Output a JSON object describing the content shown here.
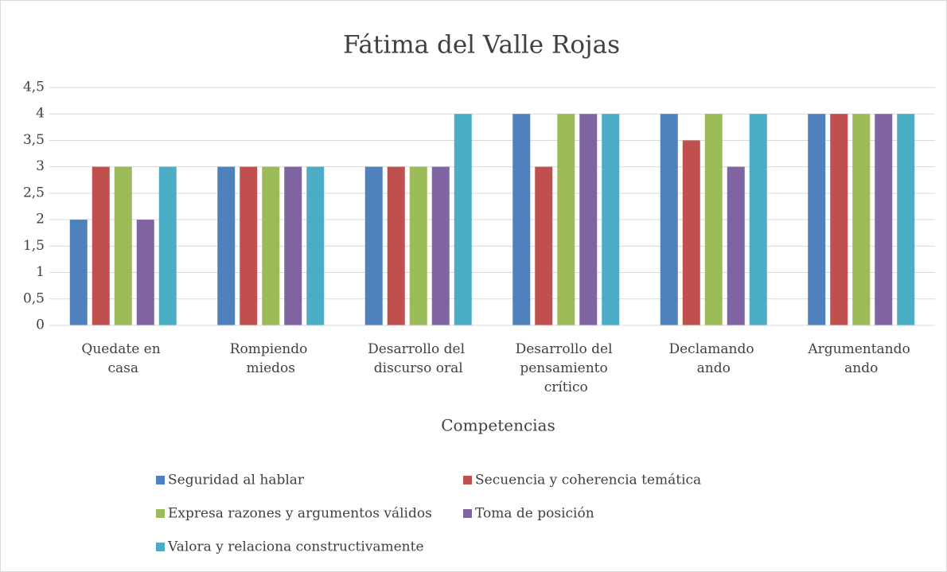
{
  "chart_data": {
    "type": "bar",
    "title": "Fátima del Valle Rojas",
    "x_label": "Competencias",
    "categories": [
      "Quedate en casa",
      "Rompiendo miedos",
      "Desarrollo del discurso oral",
      "Desarrollo del pensamiento crítico",
      "Declamando ando",
      "Argumentando ando"
    ],
    "series": [
      {
        "name": "Seguridad al hablar",
        "color": "#4f81bd",
        "values": [
          2,
          3,
          3,
          4,
          4,
          4
        ]
      },
      {
        "name": "Secuencia y coherencia temática",
        "color": "#c0504d",
        "values": [
          3,
          3,
          3,
          3,
          3.5,
          4
        ]
      },
      {
        "name": "Expresa razones y argumentos válidos",
        "color": "#9bbb59",
        "values": [
          3,
          3,
          3,
          4,
          4,
          4
        ]
      },
      {
        "name": "Toma de posición",
        "color": "#8064a2",
        "values": [
          2,
          3,
          3,
          4,
          3,
          4
        ]
      },
      {
        "name": "Valora y relaciona constructivamente",
        "color": "#4bacc6",
        "values": [
          3,
          3,
          4,
          4,
          4,
          4
        ]
      }
    ],
    "ylim": [
      0,
      4.5
    ],
    "yticks": [
      0,
      {
        "value": 0.5,
        "label": "0,5"
      },
      1,
      {
        "value": 1.5,
        "label": "1,5"
      },
      2,
      {
        "value": 2.5,
        "label": "2,5"
      },
      3,
      {
        "value": 3.5,
        "label": "3,5"
      },
      4,
      {
        "value": 4.5,
        "label": "4,5"
      }
    ],
    "grid": true,
    "legend": "bottom"
  }
}
